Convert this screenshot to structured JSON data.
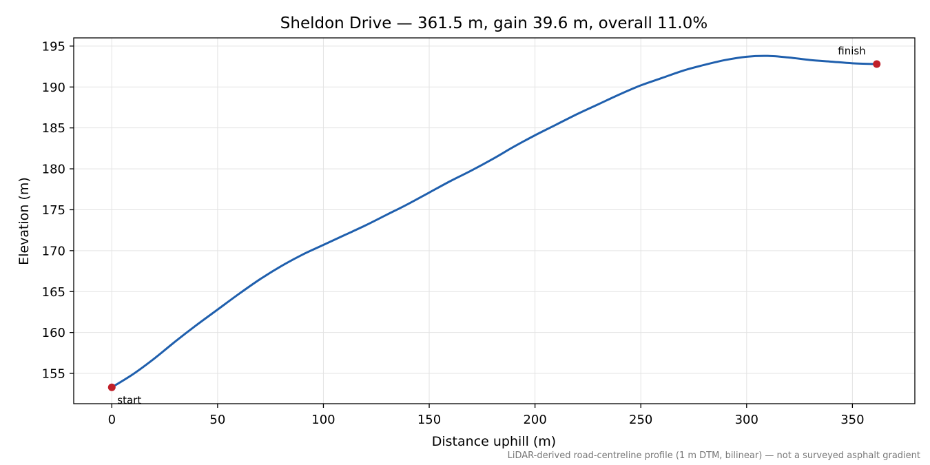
{
  "chart_data": {
    "type": "line",
    "title": "Sheldon Drive — 361.5 m, gain 39.6 m, overall 11.0%",
    "xlabel": "Distance uphill (m)",
    "ylabel": "Elevation (m)",
    "footnote": "LiDAR-derived road-centreline profile (1 m DTM, bilinear) — not a surveyed asphalt gradient",
    "xlim": [
      -18,
      379.5
    ],
    "ylim": [
      151.3,
      196.0
    ],
    "xticks": [
      0,
      50,
      100,
      150,
      200,
      250,
      300,
      350
    ],
    "yticks": [
      155,
      160,
      165,
      170,
      175,
      180,
      185,
      190,
      195
    ],
    "grid": true,
    "line_color": "#1f5fad",
    "marker_color": "#c0202a",
    "series": [
      {
        "x": [
          0,
          10,
          20,
          30,
          40,
          50,
          60,
          70,
          80,
          90,
          100,
          110,
          120,
          130,
          140,
          150,
          160,
          170,
          180,
          190,
          200,
          210,
          220,
          230,
          240,
          250,
          260,
          270,
          280,
          290,
          300,
          310,
          320,
          330,
          340,
          350,
          361.5
        ],
        "y": [
          153.3,
          154.9,
          156.8,
          158.9,
          160.9,
          162.8,
          164.7,
          166.5,
          168.1,
          169.5,
          170.7,
          171.9,
          173.1,
          174.4,
          175.7,
          177.1,
          178.5,
          179.8,
          181.2,
          182.7,
          184.1,
          185.4,
          186.7,
          187.9,
          189.1,
          190.2,
          191.1,
          192.0,
          192.7,
          193.3,
          193.7,
          193.8,
          193.6,
          193.3,
          193.1,
          192.9,
          192.8
        ]
      }
    ],
    "points": [
      {
        "label": "start",
        "x": 0,
        "y": 153.3
      },
      {
        "label": "finish",
        "x": 361.5,
        "y": 192.8
      }
    ]
  }
}
